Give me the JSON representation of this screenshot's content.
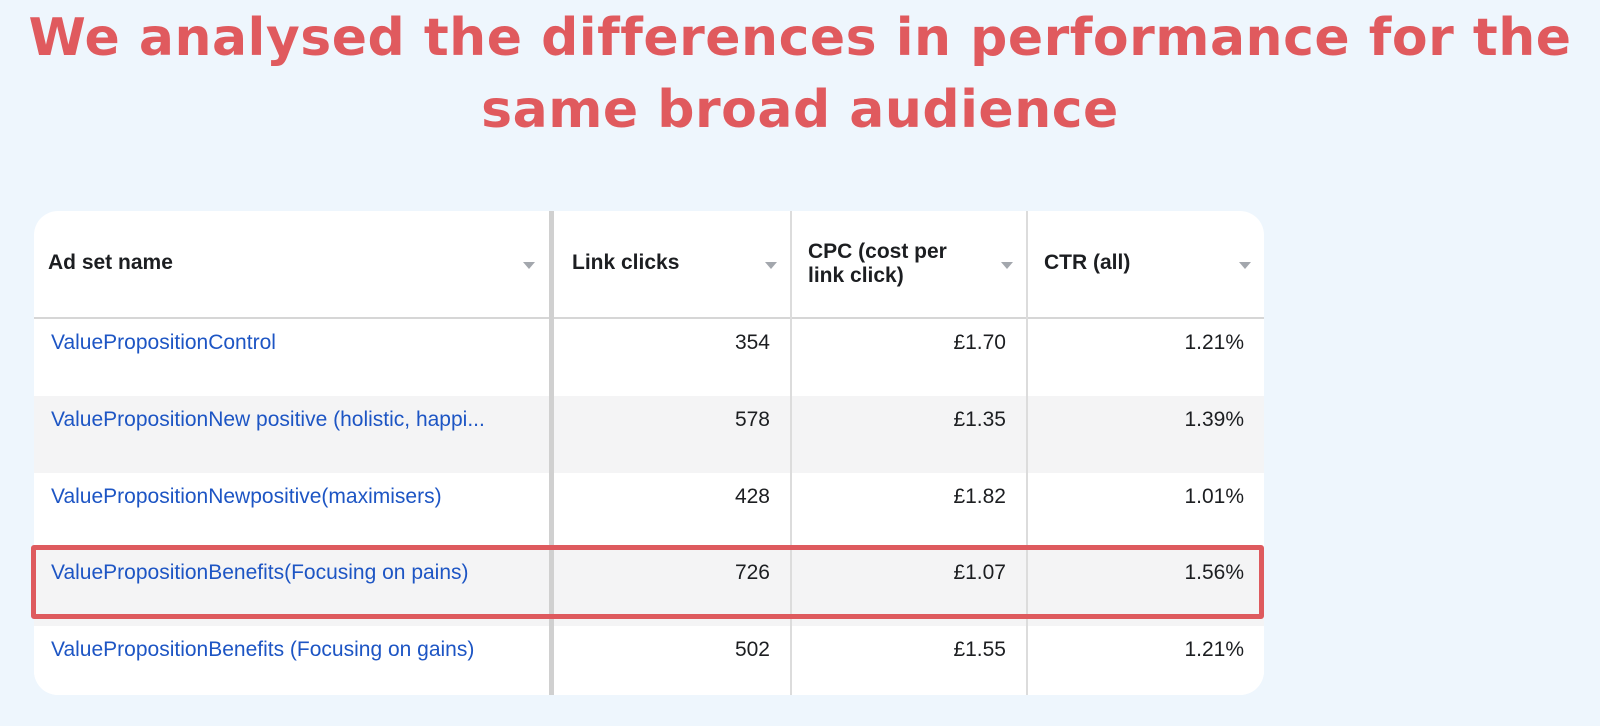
{
  "headline": {
    "line1": "We analysed the differences in performance for the",
    "line2": "same broad audience"
  },
  "table": {
    "columns": [
      "Ad set name",
      "Link clicks",
      "CPC (cost per link click)",
      "CTR (all)"
    ],
    "rows": [
      {
        "name": "ValuePropositionControl",
        "link_clicks": "354",
        "cpc": "£1.70",
        "ctr": "1.21%"
      },
      {
        "name": "ValuePropositionNew positive (holistic, happi...",
        "link_clicks": "578",
        "cpc": "£1.35",
        "ctr": "1.39%"
      },
      {
        "name": "ValuePropositionNewpositive(maximisers)",
        "link_clicks": "428",
        "cpc": "£1.82",
        "ctr": "1.01%"
      },
      {
        "name": "ValuePropositionBenefits(Focusing on pains)",
        "link_clicks": "726",
        "cpc": "£1.07",
        "ctr": "1.56%"
      },
      {
        "name": "ValuePropositionBenefits (Focusing on gains)",
        "link_clicks": "502",
        "cpc": "£1.55",
        "ctr": "1.21%"
      }
    ],
    "highlighted_row_index": 3
  },
  "colors": {
    "headline": "#e05a5e",
    "highlight_border": "#de5a5e",
    "link": "#1d55c4",
    "background": "#eef6fd"
  },
  "icons": {
    "sort": "sort-down-triangle-icon"
  }
}
